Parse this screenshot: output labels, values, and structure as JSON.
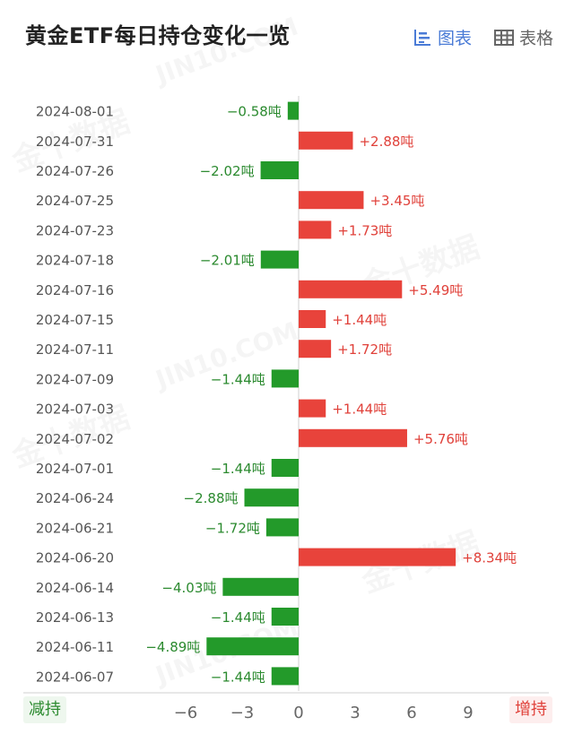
{
  "header": {
    "title": "黄金ETF每日持仓变化一览",
    "chart_view_label": "图表",
    "table_view_label": "表格"
  },
  "legend": {
    "decrease_label": "减持",
    "increase_label": "增持"
  },
  "watermark": {
    "brand_cn": "金十数据",
    "brand_en": "JIN10.COM"
  },
  "colors": {
    "increase": "#e8433b",
    "decrease": "#239a2a",
    "active_tab": "#4a7bd6",
    "axis": "#cfcfcf"
  },
  "chart_data": {
    "type": "bar",
    "orientation": "horizontal",
    "unit": "吨",
    "categories": [
      "2024-08-01",
      "2024-07-31",
      "2024-07-26",
      "2024-07-25",
      "2024-07-23",
      "2024-07-18",
      "2024-07-16",
      "2024-07-15",
      "2024-07-11",
      "2024-07-09",
      "2024-07-03",
      "2024-07-02",
      "2024-07-01",
      "2024-06-24",
      "2024-06-21",
      "2024-06-20",
      "2024-06-14",
      "2024-06-13",
      "2024-06-11",
      "2024-06-07"
    ],
    "values": [
      -0.58,
      2.88,
      -2.02,
      3.45,
      1.73,
      -2.01,
      5.49,
      1.44,
      1.72,
      -1.44,
      1.44,
      5.76,
      -1.44,
      -2.88,
      -1.72,
      8.34,
      -4.03,
      -1.44,
      -4.89,
      -1.44
    ],
    "xticks": [
      -6,
      -3,
      0,
      3,
      6,
      9
    ],
    "xlim": [
      -6.5,
      9.5
    ]
  }
}
